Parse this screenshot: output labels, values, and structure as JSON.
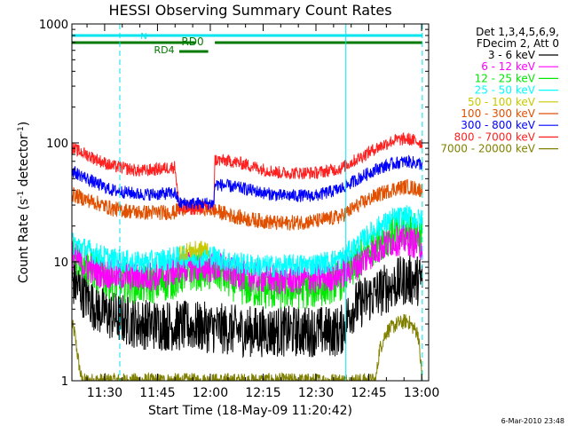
{
  "chart_data": {
    "type": "line",
    "title": "HESSI Observing Summary Count Rates",
    "xlabel": "Start Time (18-May-09 11:20:42)",
    "ylabel_main": "Count Rate (s",
    "ylabel_sup1": "-1",
    "ylabel_mid": " detector",
    "ylabel_sup2": "-1",
    "ylabel_end": ")",
    "yscale": "log",
    "ylim": [
      1,
      1000
    ],
    "xlim": [
      680.7,
      782
    ],
    "x_unit": "minutes since 00:00 UT",
    "x_ticks": [
      {
        "value": 690,
        "label": "11:30"
      },
      {
        "value": 705,
        "label": "11:45"
      },
      {
        "value": 720,
        "label": "12:00"
      },
      {
        "value": 735,
        "label": "12:15"
      },
      {
        "value": 750,
        "label": "12:30"
      },
      {
        "value": 765,
        "label": "12:45"
      },
      {
        "value": 780,
        "label": "13:00"
      }
    ],
    "y_ticks": [
      {
        "value": 1,
        "label": "1"
      },
      {
        "value": 10,
        "label": "10"
      },
      {
        "value": 100,
        "label": "100"
      },
      {
        "value": 1000,
        "label": "1000"
      }
    ],
    "legend_header": [
      "Det 1,3,4,5,6,9,",
      "FDecim 2, Att 0"
    ],
    "legend_placement": "right",
    "flag_bars": [
      {
        "label": "N",
        "color": "#00e5ee",
        "segments": [
          [
            680.7,
            758.5
          ],
          [
            758.5,
            780.2
          ]
        ]
      },
      {
        "label": "RD0",
        "color": "#007a00",
        "segments": [
          [
            680.7,
            715.7
          ],
          [
            721.3,
            780.2
          ]
        ]
      },
      {
        "label": "RD4",
        "color": "#007a00",
        "segments": [
          [
            711.2,
            719.4
          ]
        ]
      }
    ],
    "vlines": [
      {
        "x": 694.3,
        "style": "dashed",
        "color": "#00e5ee"
      },
      {
        "x": 758.5,
        "style": "solid",
        "color": "#00e5ee"
      },
      {
        "x": 780.2,
        "style": "dashed",
        "color": "#00e5ee"
      }
    ],
    "series": [
      {
        "name": "3 - 6 keV",
        "color": "#000000",
        "noise": 1.0,
        "points": [
          [
            680.7,
            7
          ],
          [
            684,
            5.5
          ],
          [
            688,
            4
          ],
          [
            692,
            3.5
          ],
          [
            700,
            3.0
          ],
          [
            710,
            2.9
          ],
          [
            720,
            2.8
          ],
          [
            730,
            2.6
          ],
          [
            740,
            2.6
          ],
          [
            750,
            2.6
          ],
          [
            757,
            2.6
          ],
          [
            760,
            4.0
          ],
          [
            765,
            5.0
          ],
          [
            770,
            6.0
          ],
          [
            775,
            7.0
          ],
          [
            780.2,
            7.0
          ]
        ]
      },
      {
        "name": "6 - 12 keV",
        "color": "#ff00ff",
        "noise": 0.6,
        "points": [
          [
            680.7,
            11.5
          ],
          [
            684,
            9.5
          ],
          [
            688,
            8.2
          ],
          [
            692,
            7.8
          ],
          [
            700,
            7.5
          ],
          [
            705,
            7.6
          ],
          [
            710,
            8.4
          ],
          [
            712,
            9.0
          ],
          [
            716,
            9.0
          ],
          [
            720,
            8.9
          ],
          [
            722,
            9.0
          ],
          [
            726,
            8.2
          ],
          [
            730,
            7.6
          ],
          [
            735,
            7.3
          ],
          [
            740,
            7.1
          ],
          [
            750,
            7.2
          ],
          [
            757,
            7.8
          ],
          [
            762,
            9.5
          ],
          [
            767,
            12.5
          ],
          [
            772,
            15.0
          ],
          [
            776,
            15.2
          ],
          [
            780.2,
            13.5
          ]
        ]
      },
      {
        "name": "12 - 25 keV",
        "color": "#00e800",
        "noise": 0.8,
        "points": [
          [
            680.7,
            12.5
          ],
          [
            684,
            10.0
          ],
          [
            688,
            8.0
          ],
          [
            692,
            7.0
          ],
          [
            700,
            6.5
          ],
          [
            705,
            6.6
          ],
          [
            710,
            7.2
          ],
          [
            712,
            8.0
          ],
          [
            716,
            8.5
          ],
          [
            720,
            8.3
          ],
          [
            722,
            8.3
          ],
          [
            726,
            7.0
          ],
          [
            730,
            6.2
          ],
          [
            735,
            5.9
          ],
          [
            740,
            5.8
          ],
          [
            750,
            6.0
          ],
          [
            757,
            7.0
          ],
          [
            762,
            10.0
          ],
          [
            767,
            14.5
          ],
          [
            772,
            17.5
          ],
          [
            776,
            18.0
          ],
          [
            780.2,
            17.0
          ]
        ]
      },
      {
        "name": "25 - 50 keV",
        "color": "#00ffff",
        "noise": 0.45,
        "points": [
          [
            680.7,
            14.5
          ],
          [
            684,
            13.0
          ],
          [
            688,
            11.5
          ],
          [
            692,
            10.5
          ],
          [
            700,
            9.8
          ],
          [
            705,
            10.2
          ],
          [
            710,
            10.8
          ],
          [
            712,
            11.0
          ],
          [
            716,
            11.0
          ],
          [
            720,
            11.3
          ],
          [
            722,
            10.8
          ],
          [
            726,
            10.0
          ],
          [
            730,
            9.5
          ],
          [
            735,
            9.2
          ],
          [
            740,
            9.2
          ],
          [
            750,
            9.5
          ],
          [
            757,
            10.5
          ],
          [
            762,
            14.0
          ],
          [
            767,
            19.0
          ],
          [
            772,
            23.0
          ],
          [
            776,
            24.0
          ],
          [
            780.2,
            22.0
          ]
        ]
      },
      {
        "name": "50 - 100 keV",
        "color": "#c8c800",
        "noise": 0.35,
        "points": [
          [
            711.2,
            12.0
          ],
          [
            715,
            12.5
          ],
          [
            719.4,
            13.0
          ]
        ]
      },
      {
        "name": "100 - 300 keV",
        "color": "#e05000",
        "noise": 0.3,
        "points": [
          [
            680.7,
            37
          ],
          [
            684,
            34
          ],
          [
            688,
            31
          ],
          [
            692,
            28
          ],
          [
            700,
            26
          ],
          [
            705,
            26
          ],
          [
            710,
            26
          ],
          [
            711.2,
            28.5
          ],
          [
            716,
            28.5
          ],
          [
            719,
            28.0
          ],
          [
            722,
            26.5
          ],
          [
            726,
            24.5
          ],
          [
            730,
            23
          ],
          [
            735,
            22
          ],
          [
            740,
            21
          ],
          [
            750,
            22
          ],
          [
            757,
            24
          ],
          [
            762,
            30
          ],
          [
            767,
            36
          ],
          [
            772,
            41
          ],
          [
            776,
            43
          ],
          [
            780.2,
            40
          ]
        ]
      },
      {
        "name": "300 - 800 keV",
        "color": "#0000ff",
        "noise": 0.25,
        "points": [
          [
            680.7,
            58
          ],
          [
            684,
            52
          ],
          [
            688,
            45
          ],
          [
            692,
            40
          ],
          [
            700,
            37
          ],
          [
            705,
            37
          ],
          [
            710,
            38
          ],
          [
            711.2,
            31
          ],
          [
            716,
            31
          ],
          [
            719,
            31
          ],
          [
            721,
            31
          ],
          [
            721.3,
            45
          ],
          [
            726,
            43
          ],
          [
            730,
            41
          ],
          [
            735,
            38
          ],
          [
            740,
            36
          ],
          [
            750,
            36
          ],
          [
            757,
            41
          ],
          [
            762,
            50
          ],
          [
            767,
            60
          ],
          [
            772,
            67
          ],
          [
            776,
            70
          ],
          [
            780.2,
            66
          ]
        ]
      },
      {
        "name": "800 - 7000 keV",
        "color": "#ff2020",
        "noise": 0.25,
        "points": [
          [
            680.7,
            90
          ],
          [
            684,
            82
          ],
          [
            688,
            72
          ],
          [
            692,
            64
          ],
          [
            700,
            58
          ],
          [
            705,
            60
          ],
          [
            710,
            63
          ],
          [
            711.2,
            27.5
          ],
          [
            716,
            28
          ],
          [
            719,
            29
          ],
          [
            721,
            29
          ],
          [
            721.3,
            72
          ],
          [
            726,
            70
          ],
          [
            730,
            66
          ],
          [
            735,
            60
          ],
          [
            740,
            56
          ],
          [
            750,
            56
          ],
          [
            757,
            61
          ],
          [
            762,
            74
          ],
          [
            767,
            90
          ],
          [
            772,
            105
          ],
          [
            776,
            108
          ],
          [
            780.2,
            100
          ]
        ]
      },
      {
        "name": "7000 - 20000 keV",
        "color": "#808000",
        "noise": 0.3,
        "points": [
          [
            680.7,
            3.0
          ],
          [
            681.5,
            2.5
          ],
          [
            682.5,
            1.5
          ],
          [
            683.5,
            1.0
          ],
          [
            767,
            1.0
          ],
          [
            768,
            1.8
          ],
          [
            770,
            2.6
          ],
          [
            773,
            3.0
          ],
          [
            776,
            3.2
          ],
          [
            779,
            2.5
          ],
          [
            780.2,
            1.0
          ]
        ]
      }
    ],
    "footer_date": "6-Mar-2010 23:48"
  }
}
